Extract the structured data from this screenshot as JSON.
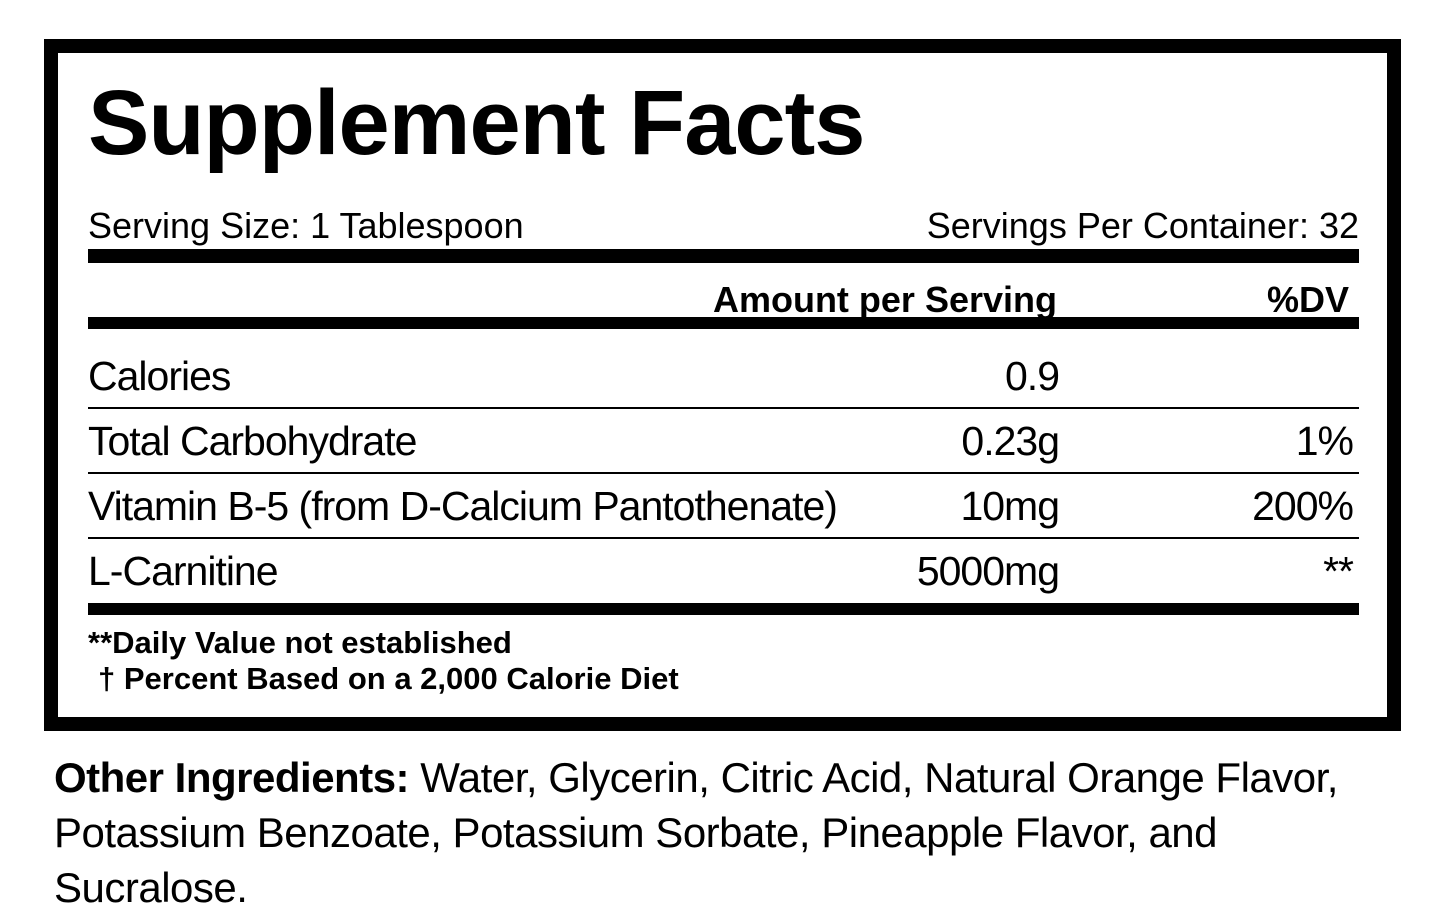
{
  "label": {
    "title": "Supplement Facts",
    "serving_size": "Serving Size: 1 Tablespoon",
    "servings_per_container": "Servings Per Container: 32",
    "header": {
      "amount": "Amount per Serving",
      "dv": "%DV"
    },
    "rows": [
      [
        "Calories",
        "0.9",
        ""
      ],
      [
        "Total Carbohydrate",
        "0.23g",
        "1%"
      ],
      [
        "Vitamin B-5 (from D-Calcium Pantothenate)",
        "10mg",
        "200%"
      ],
      [
        "L-Carnitine",
        "5000mg",
        "**"
      ]
    ],
    "footnotes": [
      "**Daily Value not established",
      "† Percent Based on a 2,000 Calorie Diet"
    ]
  },
  "other_ingredients": {
    "heading": "Other Ingredients:",
    "text": "Water, Glycerin, Citric Acid, Natural Orange Flavor, Potassium Benzoate, Potassium Sorbate, Pineapple Flavor, and Sucralose."
  }
}
